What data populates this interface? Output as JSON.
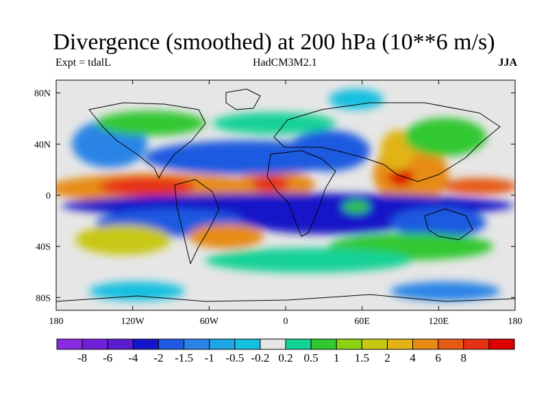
{
  "title": "Divergence (smoothed) at 200 hPa (10**6 m/s)",
  "subtitle_left": "Expt = tdalL",
  "subtitle_center": "HadCM3M2.1",
  "subtitle_right": "JJA",
  "map": {
    "lon_range": [
      -180,
      180
    ],
    "lat_range": [
      -90,
      90
    ],
    "lat_ticks": [
      {
        "value": 80,
        "label": "80N"
      },
      {
        "value": 40,
        "label": "40N"
      },
      {
        "value": 0,
        "label": "0"
      },
      {
        "value": -40,
        "label": "40S"
      },
      {
        "value": -80,
        "label": "80S"
      }
    ],
    "lon_ticks": [
      {
        "value": -180,
        "label": "180"
      },
      {
        "value": -120,
        "label": "120W"
      },
      {
        "value": -60,
        "label": "60W"
      },
      {
        "value": 0,
        "label": "0"
      },
      {
        "value": 60,
        "label": "60E"
      },
      {
        "value": 120,
        "label": "120E"
      },
      {
        "value": 180,
        "label": "180"
      }
    ],
    "zero_band_color": "#e6e6e6"
  },
  "colorbar": {
    "colors": [
      "#8a2be2",
      "#7020d8",
      "#5a1ed0",
      "#1414c8",
      "#1e5ae0",
      "#2a84e6",
      "#1ea6e6",
      "#14c0e0",
      "#e6e6e6",
      "#14d296",
      "#32c832",
      "#8cd214",
      "#c8c814",
      "#e1b414",
      "#e68c14",
      "#e65a14",
      "#e63214",
      "#dc0000"
    ],
    "labels": [
      "-8",
      "-6",
      "-4",
      "-2",
      "-1.5",
      "-1",
      "-0.5",
      "-0.2",
      "0.2",
      "0.5",
      "1",
      "1.5",
      "2",
      "4",
      "6",
      "8"
    ]
  }
}
